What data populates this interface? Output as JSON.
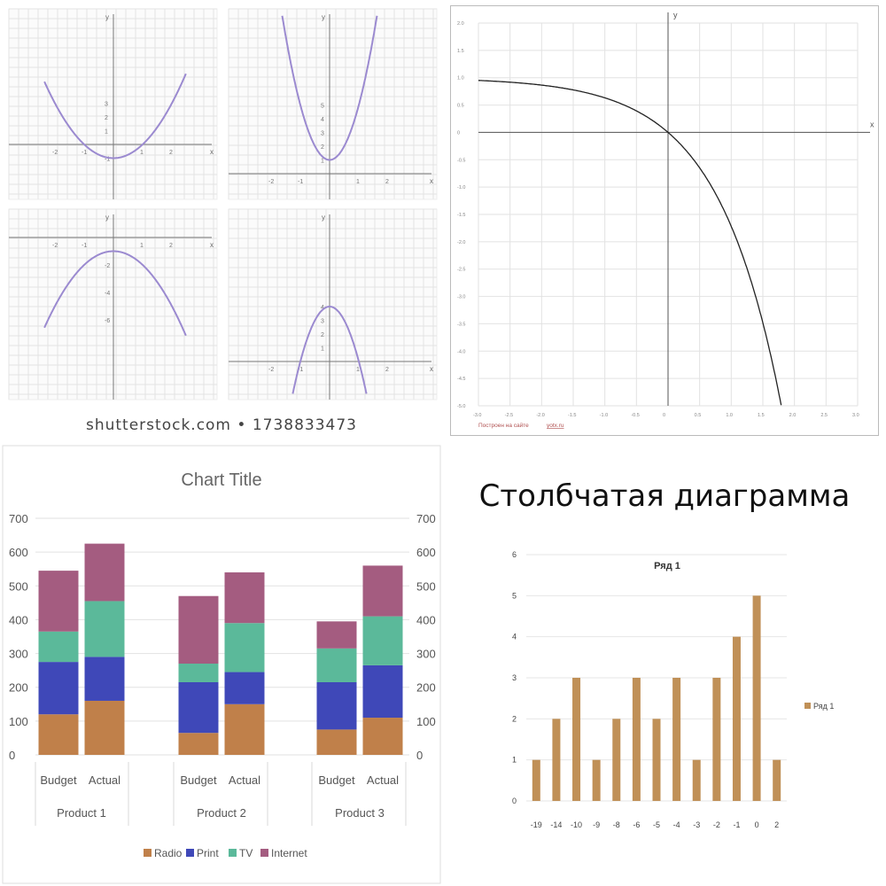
{
  "parabolas": {
    "panels": [
      {
        "a": 1,
        "c": -1,
        "xticks": [
          "-2",
          "-1",
          "1",
          "2"
        ],
        "yticks": [
          "-1",
          "1",
          "2",
          "3"
        ],
        "ylabel": "y",
        "xlabel": "x"
      },
      {
        "a": 4,
        "c": 1,
        "xticks": [
          "-2",
          "-1",
          "1",
          "2"
        ],
        "yticks": [
          "1",
          "2",
          "3",
          "4",
          "5"
        ],
        "ylabel": "y",
        "xlabel": "x"
      },
      {
        "a": -1,
        "c": -1,
        "xticks": [
          "-2",
          "-1",
          "1",
          "2"
        ],
        "yticks": [
          "-2",
          "-4",
          "-6"
        ],
        "ylabel": "y",
        "xlabel": "x"
      },
      {
        "a": -4,
        "c": 4,
        "xticks": [
          "-2",
          "-1",
          "1",
          "2"
        ],
        "yticks": [
          "1",
          "2",
          "3",
          "4"
        ],
        "ylabel": "y",
        "xlabel": "x"
      }
    ],
    "curve_color": "#9b8ad0",
    "watermark": "shutterstock.com • 1738833473"
  },
  "exp_chart": {
    "x_axis_label": "x",
    "y_axis_label": "y",
    "xlim": [
      -3.0,
      3.0
    ],
    "ylim": [
      -5.0,
      2.0
    ],
    "x_ticks": [
      "-3.0",
      "-2.5",
      "-2.0",
      "-1.5",
      "-1.0",
      "-0.5",
      "0",
      "0.5",
      "1.0",
      "1.5",
      "2.0",
      "2.5",
      "3.0"
    ],
    "y_ticks": [
      "2.0",
      "1.5",
      "1.0",
      "0.5",
      "0",
      "-0.5",
      "-1.0",
      "-1.5",
      "-2.0",
      "-2.5",
      "-3.0",
      "-3.5",
      "-4.0",
      "-4.5",
      "-5.0"
    ],
    "footer": "Построен на сайте",
    "footer_link": "yotx.ru"
  },
  "chart_data": [
    {
      "type": "bar",
      "stacked": true,
      "title": "Chart Title",
      "groups": [
        "Product 1",
        "Product 2",
        "Product 3"
      ],
      "categories": [
        "Budget",
        "Actual",
        "Budget",
        "Actual",
        "Budget",
        "Actual"
      ],
      "series": [
        {
          "name": "Radio",
          "color": "#c0804a",
          "values": [
            120,
            160,
            65,
            150,
            75,
            110
          ]
        },
        {
          "name": "Print",
          "color": "#3f48b8",
          "values": [
            155,
            130,
            150,
            95,
            140,
            155
          ]
        },
        {
          "name": "TV",
          "color": "#5bb99a",
          "values": [
            90,
            165,
            55,
            145,
            100,
            145
          ]
        },
        {
          "name": "Internet",
          "color": "#a45c80",
          "values": [
            180,
            170,
            200,
            150,
            80,
            150
          ]
        }
      ],
      "ylim": [
        0,
        700
      ],
      "y_ticks": [
        "0",
        "100",
        "200",
        "300",
        "400",
        "500",
        "600",
        "700"
      ],
      "legend": "bottom",
      "grid": true
    },
    {
      "type": "bar",
      "title": "Ряд 1",
      "categories": [
        "-19",
        "-14",
        "-10",
        "-9",
        "-8",
        "-6",
        "-5",
        "-4",
        "-3",
        "-2",
        "-1",
        "0",
        "2"
      ],
      "series": [
        {
          "name": "Ряд 1",
          "color": "#c09057",
          "values": [
            1,
            2,
            3,
            1,
            2,
            3,
            2,
            3,
            1,
            3,
            4,
            5,
            1
          ]
        }
      ],
      "ylim": [
        0,
        6
      ],
      "y_ticks": [
        "0",
        "1",
        "2",
        "3",
        "4",
        "5",
        "6"
      ],
      "legend": "right",
      "grid": true
    }
  ],
  "ru_title": "Столбчатая диаграмма"
}
